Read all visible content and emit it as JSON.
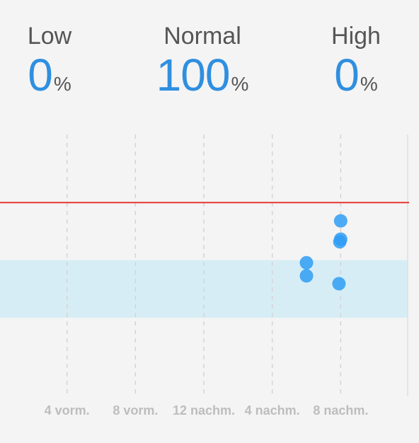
{
  "summary": {
    "low": {
      "label": "Low",
      "value": "0",
      "unit": "%"
    },
    "normal": {
      "label": "Normal",
      "value": "100",
      "unit": "%"
    },
    "high": {
      "label": "High",
      "value": "0",
      "unit": "%"
    }
  },
  "chart_data": {
    "type": "scatter",
    "x_ticks": [
      "4 vorm.",
      "8 vorm.",
      "12 nachm.",
      "4 nachm.",
      "8 nachm."
    ],
    "x_tick_hours": [
      4,
      8,
      12,
      16,
      20
    ],
    "xlim_hours": [
      0,
      24
    ],
    "ylim": [
      0,
      1
    ],
    "threshold_line": {
      "y": 0.74,
      "color": "#e53935"
    },
    "normal_band": {
      "y_min": 0.3,
      "y_max": 0.52,
      "color": "#d6edf5"
    },
    "grid_lines": "vertical-dashed",
    "point_color": "#2f9cf3",
    "points": [
      {
        "x": 18.0,
        "y": 0.51
      },
      {
        "x": 18.0,
        "y": 0.46
      },
      {
        "x": 20.0,
        "y": 0.67
      },
      {
        "x": 20.0,
        "y": 0.6
      },
      {
        "x": 19.95,
        "y": 0.59
      },
      {
        "x": 19.9,
        "y": 0.43
      }
    ]
  }
}
